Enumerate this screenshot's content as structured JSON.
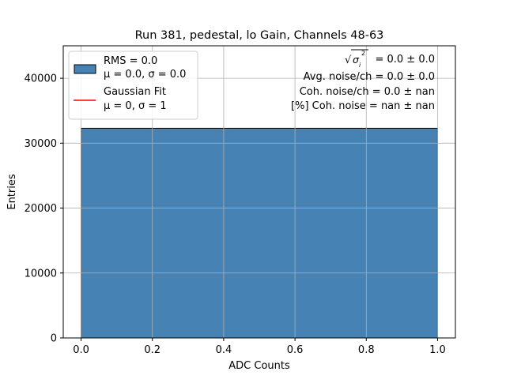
{
  "chart_data": {
    "type": "bar",
    "title": "Run 381, pedestal, lo Gain, Channels 48-63",
    "xlabel": "ADC Counts",
    "ylabel": "Entries",
    "xlim": [
      -0.05,
      1.05
    ],
    "ylim": [
      0,
      45000
    ],
    "xticks": [
      0.0,
      0.2,
      0.4,
      0.6,
      0.8,
      1.0
    ],
    "xtick_labels": [
      "0.0",
      "0.2",
      "0.4",
      "0.6",
      "0.8",
      "1.0"
    ],
    "yticks": [
      0,
      10000,
      20000,
      30000,
      40000
    ],
    "ytick_labels": [
      "0",
      "10000",
      "20000",
      "30000",
      "40000"
    ],
    "grid": true,
    "bins": [
      {
        "x0": 0.0,
        "x1": 1.0,
        "value": 32300
      }
    ],
    "bar_color": "#4682b4",
    "fit_color": "#ff0000",
    "legend_placement": "top-left",
    "legend": {
      "hist_line1": "RMS = 0.0",
      "hist_line2": "μ = 0.0, σ = 0.0",
      "fit_line1": "Gaussian Fit",
      "fit_line2": "μ = 0, σ = 1"
    },
    "annotations": {
      "sigma_value": " = 0.0 ± 0.0",
      "avg_noise": "Avg. noise/ch = 0.0 ± 0.0",
      "coh_noise": "Coh. noise/ch = 0.0 ± nan",
      "coh_noise_pct": "[%] Coh. noise = nan ± nan"
    }
  }
}
